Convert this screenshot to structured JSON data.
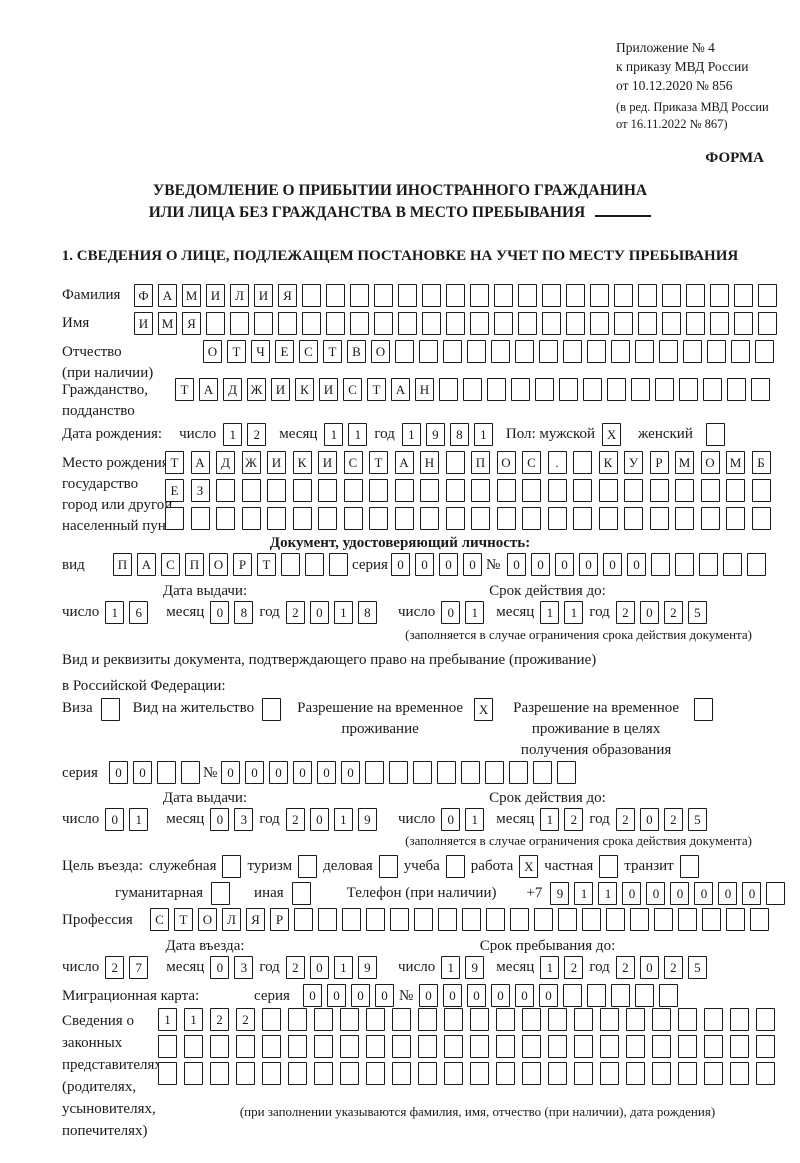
{
  "header": {
    "annex_lines": [
      "Приложение № 4",
      "к приказу МВД России",
      "от 10.12.2020 № 856"
    ],
    "edit_lines": [
      "(в ред. Приказа МВД России",
      "от 16.11.2022 № 867)"
    ],
    "forma": "ФОРМА"
  },
  "title": {
    "line1": "УВЕДОМЛЕНИЕ О ПРИБЫТИИ ИНОСТРАННОГО ГРАЖДАНИНА",
    "line2": "ИЛИ ЛИЦА БЕЗ ГРАЖДАНСТВА В МЕСТО ПРЕБЫВАНИЯ"
  },
  "section1_heading": "1. СВЕДЕНИЯ О ЛИЦЕ, ПОДЛЕЖАЩЕМ ПОСТАНОВКЕ НА УЧЕТ ПО МЕСТУ ПРЕБЫВАНИЯ",
  "date_labels": {
    "day": "число",
    "month": "месяц",
    "year": "год"
  },
  "person": {
    "surname": {
      "label": "Фамилия",
      "cells": {
        "value": "ФАМИЛИЯ",
        "len": 27
      }
    },
    "given_name": {
      "label": "Имя",
      "cells": {
        "value": "ИМЯ",
        "len": 27
      }
    },
    "patronymic": {
      "label1": "Отчество",
      "label2": "(при наличии)",
      "cells": {
        "value": "ОТЧЕСТВО",
        "len": 24
      }
    },
    "citizenship": {
      "label1": "Гражданство,",
      "label2": "подданство",
      "cells": {
        "value": "ТАДЖИКИСТАН",
        "len": 25
      }
    },
    "birth_date": {
      "label": "Дата рождения:",
      "day": {
        "value": "12",
        "len": 2
      },
      "month": {
        "value": "11",
        "len": 2
      },
      "year": {
        "value": "1981",
        "len": 4
      },
      "sex_label": "Пол: мужской",
      "sex_male_box": {
        "value": "X",
        "len": 1
      },
      "sex_female_label": "женский",
      "sex_female_box": {
        "value": "",
        "len": 1
      }
    },
    "birth_place": {
      "labels": [
        "Место рождения:",
        "государство",
        "город или другой",
        "населенный пункт"
      ],
      "row1": {
        "value": "ТАДЖИКИСТАН ПОС. КУРМОМБ",
        "len": 24
      },
      "row2": {
        "value": "ЕЗ",
        "len": 24
      },
      "row3": {
        "value": "",
        "len": 24
      }
    }
  },
  "identity_doc": {
    "heading": "Документ, удостоверяющий личность:",
    "kind_label": "вид",
    "kind": {
      "value": "ПАСПОРТ",
      "len": 10
    },
    "series_label": "серия",
    "series": {
      "value": "0000",
      "len": 4
    },
    "number_label": "№",
    "number": {
      "value": "000000",
      "len": 11
    },
    "issue_header": "Дата выдачи:",
    "valid_header": "Срок действия до:",
    "issue": {
      "day": {
        "value": "16",
        "len": 2
      },
      "month": {
        "value": "08",
        "len": 2
      },
      "year": {
        "value": "2018",
        "len": 4
      }
    },
    "valid": {
      "day": {
        "value": "01",
        "len": 2
      },
      "month": {
        "value": "11",
        "len": 2
      },
      "year": {
        "value": "2025",
        "len": 4
      }
    },
    "note": "(заполняется в случае ограничения срока действия документа)"
  },
  "stay_doc": {
    "intro1": "Вид и реквизиты документа, подтверждающего право на пребывание (проживание)",
    "intro2": "в Российской Федерации:",
    "options": [
      {
        "label": "Виза",
        "box": {
          "value": "",
          "len": 1
        }
      },
      {
        "label": "Вид на жительство",
        "box": {
          "value": "",
          "len": 1
        }
      },
      {
        "label": "Разрешение на временное проживание",
        "box": {
          "value": "X",
          "len": 1
        }
      },
      {
        "label": "Разрешение на временное проживание в целях получения образования",
        "box": {
          "value": "",
          "len": 1
        }
      }
    ],
    "series_label": "серия",
    "series": {
      "value": "00",
      "len": 4
    },
    "number_label": "№",
    "number": {
      "value": "000000",
      "len": 15
    },
    "issue_header": "Дата выдачи:",
    "valid_header": "Срок действия до:",
    "issue": {
      "day": {
        "value": "01",
        "len": 2
      },
      "month": {
        "value": "03",
        "len": 2
      },
      "year": {
        "value": "2019",
        "len": 4
      }
    },
    "valid": {
      "day": {
        "value": "01",
        "len": 2
      },
      "month": {
        "value": "12",
        "len": 2
      },
      "year": {
        "value": "2025",
        "len": 4
      }
    },
    "note": "(заполняется в случае ограничения срока действия документа)"
  },
  "purpose": {
    "label": "Цель въезда:",
    "options": [
      {
        "label": "служебная",
        "box": {
          "value": "",
          "len": 1
        }
      },
      {
        "label": "туризм",
        "box": {
          "value": "",
          "len": 1
        }
      },
      {
        "label": "деловая",
        "box": {
          "value": "",
          "len": 1
        }
      },
      {
        "label": "учеба",
        "box": {
          "value": "",
          "len": 1
        }
      },
      {
        "label": "работа",
        "box": {
          "value": "X",
          "len": 1
        }
      },
      {
        "label": "частная",
        "box": {
          "value": "",
          "len": 1
        }
      },
      {
        "label": "транзит",
        "box": {
          "value": "",
          "len": 1
        }
      }
    ],
    "options2": [
      {
        "label": "гуманитарная",
        "box": {
          "value": "",
          "len": 1
        }
      },
      {
        "label": "иная",
        "box": {
          "value": "",
          "len": 1
        }
      }
    ],
    "phone_label": "Телефон (при наличии)",
    "phone_prefix": "+7",
    "phone": {
      "value": "911000000",
      "len": 10
    }
  },
  "profession": {
    "label": "Профессия",
    "cells": {
      "value": "СТОЛЯР",
      "len": 26
    }
  },
  "entry": {
    "entry_header": "Дата въезда:",
    "stay_header": "Срок пребывания до:",
    "entry_date": {
      "day": {
        "value": "27",
        "len": 2
      },
      "month": {
        "value": "03",
        "len": 2
      },
      "year": {
        "value": "2019",
        "len": 4
      }
    },
    "stay_until": {
      "day": {
        "value": "19",
        "len": 2
      },
      "month": {
        "value": "12",
        "len": 2
      },
      "year": {
        "value": "2025",
        "len": 4
      }
    }
  },
  "migration_card": {
    "label": "Миграционная карта:",
    "series_label": "серия",
    "series": {
      "value": "0000",
      "len": 4
    },
    "number_label": "№",
    "number": {
      "value": "000000",
      "len": 11
    }
  },
  "representatives": {
    "labels": [
      "Сведения о",
      "законных",
      "представителях",
      "(родителях,",
      "усыновителях,",
      "попечителях)"
    ],
    "row1": {
      "value": "1122",
      "len": 24
    },
    "row2": {
      "value": "",
      "len": 24
    },
    "row3": {
      "value": "",
      "len": 24
    },
    "note": "(при заполнении указываются фамилия, имя, отчество (при наличии), дата рождения)"
  }
}
